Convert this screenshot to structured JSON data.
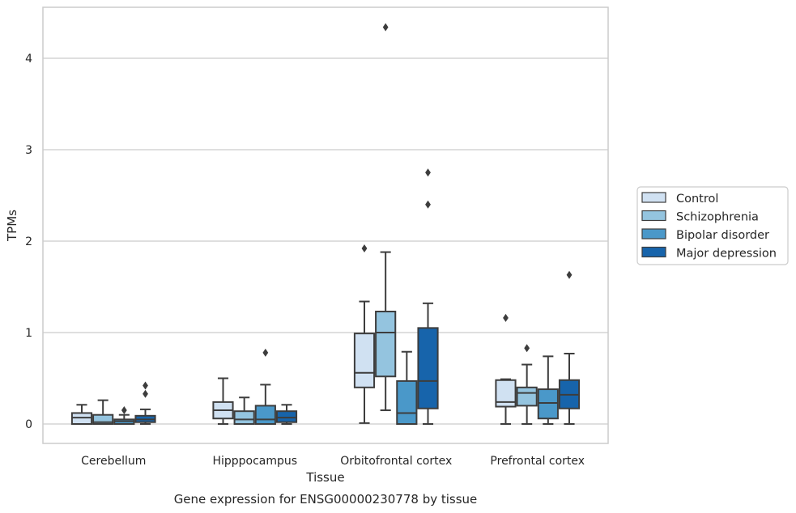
{
  "chart_data": {
    "type": "box",
    "title": "Gene expression for ENSG00000230778 by tissue",
    "xlabel": "Tissue",
    "ylabel": "TPMs",
    "ylim": [
      -0.2,
      4.57
    ],
    "yticks": [
      0,
      1,
      2,
      3,
      4
    ],
    "grid": "horizontal",
    "legend_position": "right",
    "categories": [
      "Cerebellum",
      "Hipppocampus",
      "Orbitofrontal cortex",
      "Prefrontal cortex"
    ],
    "series": [
      {
        "name": "Control",
        "color": "#d0e1f2",
        "boxes": [
          {
            "whisker_low": 0.0,
            "q1": 0.0,
            "median": 0.07,
            "q3": 0.12,
            "whisker_high": 0.21,
            "outliers": []
          },
          {
            "whisker_low": 0.0,
            "q1": 0.06,
            "median": 0.15,
            "q3": 0.24,
            "whisker_high": 0.5,
            "outliers": []
          },
          {
            "whisker_low": 0.01,
            "q1": 0.4,
            "median": 0.56,
            "q3": 0.99,
            "whisker_high": 1.34,
            "outliers": [
              1.92
            ]
          },
          {
            "whisker_low": 0.0,
            "q1": 0.19,
            "median": 0.24,
            "q3": 0.48,
            "whisker_high": 0.49,
            "outliers": [
              1.16
            ]
          }
        ]
      },
      {
        "name": "Schizophrenia",
        "color": "#94c4df",
        "boxes": [
          {
            "whisker_low": 0.0,
            "q1": 0.0,
            "median": 0.02,
            "q3": 0.1,
            "whisker_high": 0.26,
            "outliers": []
          },
          {
            "whisker_low": 0.0,
            "q1": 0.0,
            "median": 0.05,
            "q3": 0.14,
            "whisker_high": 0.29,
            "outliers": []
          },
          {
            "whisker_low": 0.15,
            "q1": 0.52,
            "median": 1.0,
            "q3": 1.23,
            "whisker_high": 1.88,
            "outliers": [
              4.34
            ]
          },
          {
            "whisker_low": 0.0,
            "q1": 0.2,
            "median": 0.34,
            "q3": 0.4,
            "whisker_high": 0.65,
            "outliers": [
              0.83
            ]
          }
        ]
      },
      {
        "name": "Bipolar disorder",
        "color": "#4a98c9",
        "boxes": [
          {
            "whisker_low": 0.0,
            "q1": 0.0,
            "median": 0.03,
            "q3": 0.05,
            "whisker_high": 0.1,
            "outliers": [
              0.15
            ]
          },
          {
            "whisker_low": 0.0,
            "q1": 0.0,
            "median": 0.05,
            "q3": 0.2,
            "whisker_high": 0.43,
            "outliers": [
              0.78
            ]
          },
          {
            "whisker_low": 0.0,
            "q1": 0.0,
            "median": 0.12,
            "q3": 0.47,
            "whisker_high": 0.79,
            "outliers": []
          },
          {
            "whisker_low": 0.0,
            "q1": 0.06,
            "median": 0.23,
            "q3": 0.38,
            "whisker_high": 0.74,
            "outliers": []
          }
        ]
      },
      {
        "name": "Major depression",
        "color": "#1764ab",
        "boxes": [
          {
            "whisker_low": 0.0,
            "q1": 0.02,
            "median": 0.05,
            "q3": 0.09,
            "whisker_high": 0.16,
            "outliers": [
              0.33,
              0.42
            ]
          },
          {
            "whisker_low": 0.0,
            "q1": 0.02,
            "median": 0.07,
            "q3": 0.14,
            "whisker_high": 0.21,
            "outliers": []
          },
          {
            "whisker_low": 0.0,
            "q1": 0.17,
            "median": 0.47,
            "q3": 1.05,
            "whisker_high": 1.32,
            "outliers": [
              2.4,
              2.75
            ]
          },
          {
            "whisker_low": 0.0,
            "q1": 0.17,
            "median": 0.32,
            "q3": 0.48,
            "whisker_high": 0.77,
            "outliers": [
              1.63
            ]
          }
        ]
      }
    ]
  }
}
